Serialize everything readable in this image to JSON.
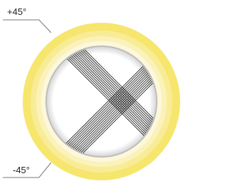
{
  "labels": {
    "top": "+45°",
    "bottom": "-45°"
  }
}
